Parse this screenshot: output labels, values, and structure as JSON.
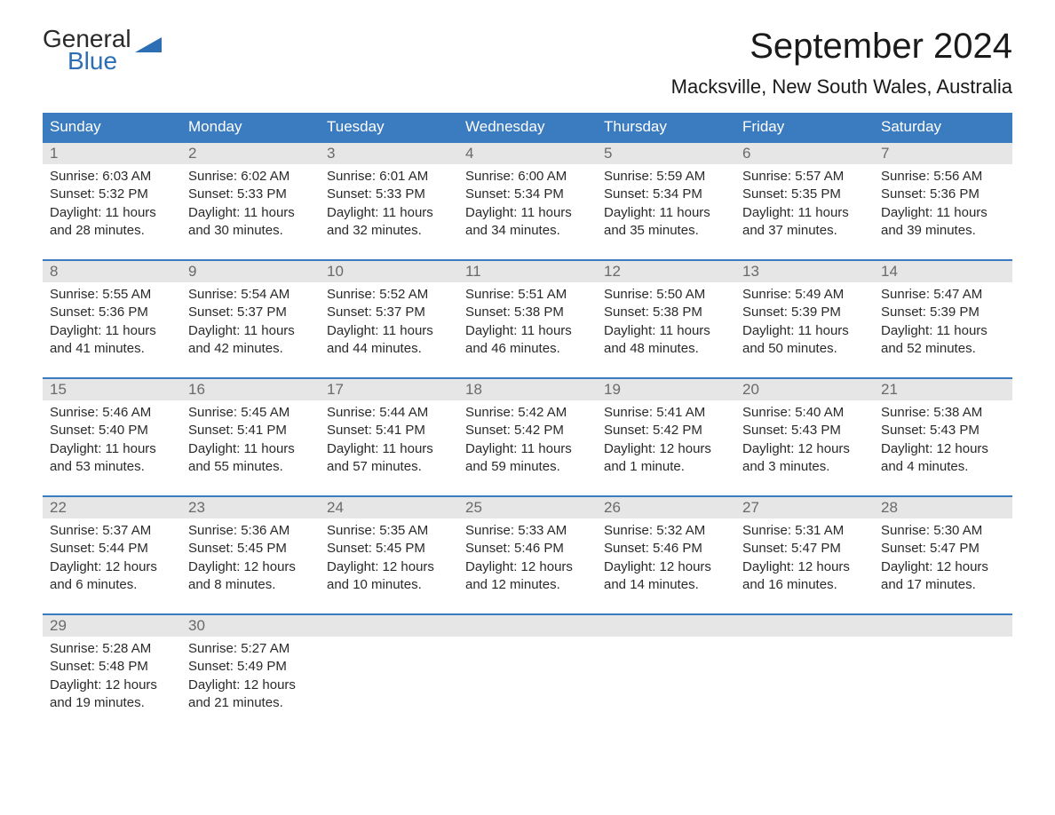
{
  "logo": {
    "text_general": "General",
    "text_blue": "Blue",
    "triangle_color": "#2c6fb5",
    "text_color_dark": "#2a2a2a"
  },
  "title": "September 2024",
  "location": "Macksville, New South Wales, Australia",
  "colors": {
    "header_bg": "#3b7bbf",
    "header_text": "#ffffff",
    "daynum_bg": "#e6e6e6",
    "daynum_text": "#6a6a6a",
    "body_text": "#2a2a2a",
    "week_border": "#3b7bbf"
  },
  "day_headers": [
    "Sunday",
    "Monday",
    "Tuesday",
    "Wednesday",
    "Thursday",
    "Friday",
    "Saturday"
  ],
  "weeks": [
    [
      {
        "n": "1",
        "sunrise": "Sunrise: 6:03 AM",
        "sunset": "Sunset: 5:32 PM",
        "day1": "Daylight: 11 hours",
        "day2": "and 28 minutes."
      },
      {
        "n": "2",
        "sunrise": "Sunrise: 6:02 AM",
        "sunset": "Sunset: 5:33 PM",
        "day1": "Daylight: 11 hours",
        "day2": "and 30 minutes."
      },
      {
        "n": "3",
        "sunrise": "Sunrise: 6:01 AM",
        "sunset": "Sunset: 5:33 PM",
        "day1": "Daylight: 11 hours",
        "day2": "and 32 minutes."
      },
      {
        "n": "4",
        "sunrise": "Sunrise: 6:00 AM",
        "sunset": "Sunset: 5:34 PM",
        "day1": "Daylight: 11 hours",
        "day2": "and 34 minutes."
      },
      {
        "n": "5",
        "sunrise": "Sunrise: 5:59 AM",
        "sunset": "Sunset: 5:34 PM",
        "day1": "Daylight: 11 hours",
        "day2": "and 35 minutes."
      },
      {
        "n": "6",
        "sunrise": "Sunrise: 5:57 AM",
        "sunset": "Sunset: 5:35 PM",
        "day1": "Daylight: 11 hours",
        "day2": "and 37 minutes."
      },
      {
        "n": "7",
        "sunrise": "Sunrise: 5:56 AM",
        "sunset": "Sunset: 5:36 PM",
        "day1": "Daylight: 11 hours",
        "day2": "and 39 minutes."
      }
    ],
    [
      {
        "n": "8",
        "sunrise": "Sunrise: 5:55 AM",
        "sunset": "Sunset: 5:36 PM",
        "day1": "Daylight: 11 hours",
        "day2": "and 41 minutes."
      },
      {
        "n": "9",
        "sunrise": "Sunrise: 5:54 AM",
        "sunset": "Sunset: 5:37 PM",
        "day1": "Daylight: 11 hours",
        "day2": "and 42 minutes."
      },
      {
        "n": "10",
        "sunrise": "Sunrise: 5:52 AM",
        "sunset": "Sunset: 5:37 PM",
        "day1": "Daylight: 11 hours",
        "day2": "and 44 minutes."
      },
      {
        "n": "11",
        "sunrise": "Sunrise: 5:51 AM",
        "sunset": "Sunset: 5:38 PM",
        "day1": "Daylight: 11 hours",
        "day2": "and 46 minutes."
      },
      {
        "n": "12",
        "sunrise": "Sunrise: 5:50 AM",
        "sunset": "Sunset: 5:38 PM",
        "day1": "Daylight: 11 hours",
        "day2": "and 48 minutes."
      },
      {
        "n": "13",
        "sunrise": "Sunrise: 5:49 AM",
        "sunset": "Sunset: 5:39 PM",
        "day1": "Daylight: 11 hours",
        "day2": "and 50 minutes."
      },
      {
        "n": "14",
        "sunrise": "Sunrise: 5:47 AM",
        "sunset": "Sunset: 5:39 PM",
        "day1": "Daylight: 11 hours",
        "day2": "and 52 minutes."
      }
    ],
    [
      {
        "n": "15",
        "sunrise": "Sunrise: 5:46 AM",
        "sunset": "Sunset: 5:40 PM",
        "day1": "Daylight: 11 hours",
        "day2": "and 53 minutes."
      },
      {
        "n": "16",
        "sunrise": "Sunrise: 5:45 AM",
        "sunset": "Sunset: 5:41 PM",
        "day1": "Daylight: 11 hours",
        "day2": "and 55 minutes."
      },
      {
        "n": "17",
        "sunrise": "Sunrise: 5:44 AM",
        "sunset": "Sunset: 5:41 PM",
        "day1": "Daylight: 11 hours",
        "day2": "and 57 minutes."
      },
      {
        "n": "18",
        "sunrise": "Sunrise: 5:42 AM",
        "sunset": "Sunset: 5:42 PM",
        "day1": "Daylight: 11 hours",
        "day2": "and 59 minutes."
      },
      {
        "n": "19",
        "sunrise": "Sunrise: 5:41 AM",
        "sunset": "Sunset: 5:42 PM",
        "day1": "Daylight: 12 hours",
        "day2": "and 1 minute."
      },
      {
        "n": "20",
        "sunrise": "Sunrise: 5:40 AM",
        "sunset": "Sunset: 5:43 PM",
        "day1": "Daylight: 12 hours",
        "day2": "and 3 minutes."
      },
      {
        "n": "21",
        "sunrise": "Sunrise: 5:38 AM",
        "sunset": "Sunset: 5:43 PM",
        "day1": "Daylight: 12 hours",
        "day2": "and 4 minutes."
      }
    ],
    [
      {
        "n": "22",
        "sunrise": "Sunrise: 5:37 AM",
        "sunset": "Sunset: 5:44 PM",
        "day1": "Daylight: 12 hours",
        "day2": "and 6 minutes."
      },
      {
        "n": "23",
        "sunrise": "Sunrise: 5:36 AM",
        "sunset": "Sunset: 5:45 PM",
        "day1": "Daylight: 12 hours",
        "day2": "and 8 minutes."
      },
      {
        "n": "24",
        "sunrise": "Sunrise: 5:35 AM",
        "sunset": "Sunset: 5:45 PM",
        "day1": "Daylight: 12 hours",
        "day2": "and 10 minutes."
      },
      {
        "n": "25",
        "sunrise": "Sunrise: 5:33 AM",
        "sunset": "Sunset: 5:46 PM",
        "day1": "Daylight: 12 hours",
        "day2": "and 12 minutes."
      },
      {
        "n": "26",
        "sunrise": "Sunrise: 5:32 AM",
        "sunset": "Sunset: 5:46 PM",
        "day1": "Daylight: 12 hours",
        "day2": "and 14 minutes."
      },
      {
        "n": "27",
        "sunrise": "Sunrise: 5:31 AM",
        "sunset": "Sunset: 5:47 PM",
        "day1": "Daylight: 12 hours",
        "day2": "and 16 minutes."
      },
      {
        "n": "28",
        "sunrise": "Sunrise: 5:30 AM",
        "sunset": "Sunset: 5:47 PM",
        "day1": "Daylight: 12 hours",
        "day2": "and 17 minutes."
      }
    ],
    [
      {
        "n": "29",
        "sunrise": "Sunrise: 5:28 AM",
        "sunset": "Sunset: 5:48 PM",
        "day1": "Daylight: 12 hours",
        "day2": "and 19 minutes."
      },
      {
        "n": "30",
        "sunrise": "Sunrise: 5:27 AM",
        "sunset": "Sunset: 5:49 PM",
        "day1": "Daylight: 12 hours",
        "day2": "and 21 minutes."
      },
      null,
      null,
      null,
      null,
      null
    ]
  ]
}
